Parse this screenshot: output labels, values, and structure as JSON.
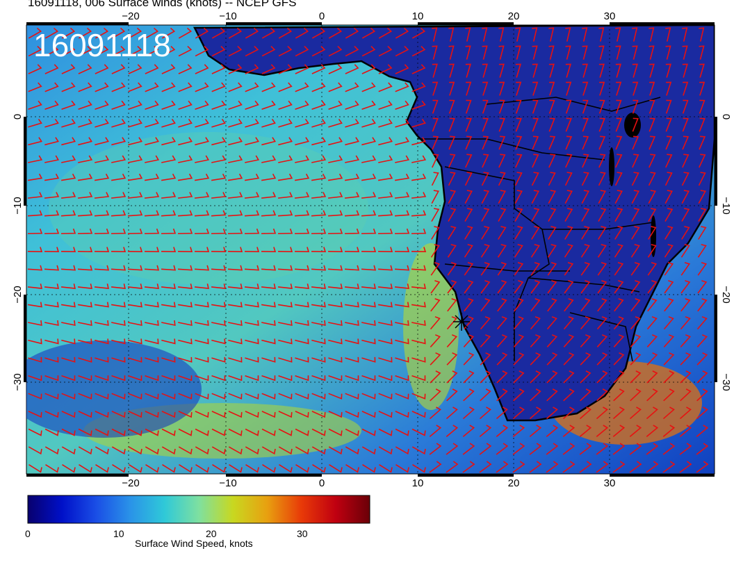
{
  "header": {
    "title": "16091118, 006 Surface winds (knots) -- NCEP GFS",
    "stamp": "16091118"
  },
  "axes": {
    "lon_ticks": [
      "−20",
      "−10",
      "0",
      "10",
      "20",
      "30"
    ],
    "top_ticks": [
      "−20",
      "−10",
      "0",
      "10",
      "20",
      "30"
    ],
    "lat_ticks": [
      "0",
      "−10",
      "−20",
      "−30"
    ]
  },
  "colorbar": {
    "label": "Surface Wind Speed, knots",
    "ticks": [
      "0",
      "10",
      "20",
      "30"
    ],
    "colors": [
      "#08006e",
      "#0010c8",
      "#1a4ee6",
      "#2a93e8",
      "#2fc9d8",
      "#7ee0a0",
      "#c8d820",
      "#e8a010",
      "#e83a08",
      "#c00010",
      "#6a0008"
    ]
  },
  "map": {
    "ocean_color": "#3fb0dc",
    "land_color": "#1a2aa0",
    "barb_color": "#e81010"
  }
}
